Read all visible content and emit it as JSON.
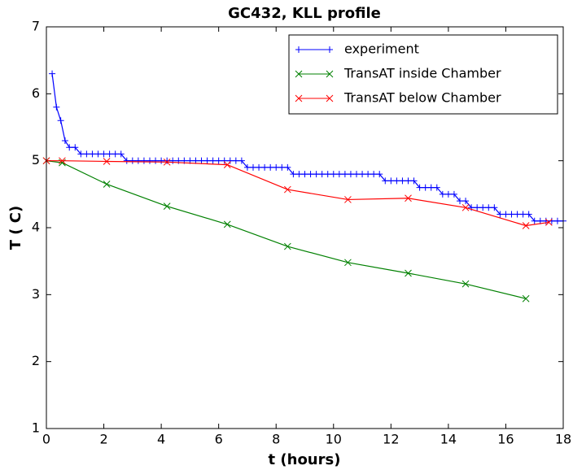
{
  "chart_data": {
    "type": "line",
    "title": "GC432, KLL profile",
    "x_label": "t (hours)",
    "y_label": "T ( C)",
    "xlim": [
      0,
      18
    ],
    "ylim": [
      1,
      7
    ],
    "xticks": [
      0,
      2,
      4,
      6,
      8,
      10,
      12,
      14,
      16,
      18
    ],
    "yticks": [
      1,
      2,
      3,
      4,
      5,
      6,
      7
    ],
    "legend": "upper right",
    "series": [
      {
        "name": "experiment",
        "color": "#0000ff",
        "marker": "+",
        "x": [
          0.2,
          0.35,
          0.5,
          0.65,
          0.8,
          1.0,
          1.2,
          1.4,
          1.6,
          1.8,
          2.0,
          2.2,
          2.4,
          2.6,
          2.8,
          3.0,
          3.2,
          3.4,
          3.6,
          3.8,
          4.0,
          4.2,
          4.4,
          4.6,
          4.8,
          5.0,
          5.2,
          5.4,
          5.6,
          5.8,
          6.0,
          6.2,
          6.4,
          6.6,
          6.8,
          7.0,
          7.2,
          7.4,
          7.6,
          7.8,
          8.0,
          8.2,
          8.4,
          8.6,
          8.8,
          9.0,
          9.2,
          9.4,
          9.6,
          9.8,
          10.0,
          10.2,
          10.4,
          10.6,
          10.8,
          11.0,
          11.2,
          11.4,
          11.6,
          11.8,
          12.0,
          12.2,
          12.4,
          12.6,
          12.8,
          13.0,
          13.2,
          13.4,
          13.6,
          13.8,
          14.0,
          14.2,
          14.4,
          14.6,
          14.8,
          15.0,
          15.2,
          15.4,
          15.6,
          15.8,
          16.0,
          16.2,
          16.4,
          16.6,
          16.8,
          17.0,
          17.2,
          17.4,
          17.6,
          17.8,
          18.0
        ],
        "values": [
          6.3,
          5.8,
          5.6,
          5.3,
          5.2,
          5.2,
          5.1,
          5.1,
          5.1,
          5.1,
          5.1,
          5.1,
          5.1,
          5.1,
          5.0,
          5.0,
          5.0,
          5.0,
          5.0,
          5.0,
          5.0,
          5.0,
          5.0,
          5.0,
          5.0,
          5.0,
          5.0,
          5.0,
          5.0,
          5.0,
          5.0,
          5.0,
          5.0,
          5.0,
          5.0,
          4.9,
          4.9,
          4.9,
          4.9,
          4.9,
          4.9,
          4.9,
          4.9,
          4.8,
          4.8,
          4.8,
          4.8,
          4.8,
          4.8,
          4.8,
          4.8,
          4.8,
          4.8,
          4.8,
          4.8,
          4.8,
          4.8,
          4.8,
          4.8,
          4.7,
          4.7,
          4.7,
          4.7,
          4.7,
          4.7,
          4.6,
          4.6,
          4.6,
          4.6,
          4.5,
          4.5,
          4.5,
          4.4,
          4.4,
          4.3,
          4.3,
          4.3,
          4.3,
          4.3,
          4.2,
          4.2,
          4.2,
          4.2,
          4.2,
          4.2,
          4.1,
          4.1,
          4.1,
          4.1,
          4.1,
          4.1
        ]
      },
      {
        "name": "TransAT inside Chamber",
        "color": "#008000",
        "marker": "x",
        "x": [
          0,
          0.55,
          2.1,
          4.2,
          6.3,
          8.4,
          10.5,
          12.6,
          14.6,
          16.7
        ],
        "values": [
          5.0,
          4.97,
          4.65,
          4.32,
          4.05,
          3.72,
          3.48,
          3.32,
          3.16,
          2.94
        ]
      },
      {
        "name": "TransAT below Chamber",
        "color": "#ff0000",
        "marker": "x",
        "x": [
          0,
          0.55,
          2.1,
          4.2,
          6.3,
          8.4,
          10.5,
          12.6,
          14.6,
          16.7,
          17.5
        ],
        "values": [
          5.0,
          5.0,
          4.99,
          4.98,
          4.94,
          4.57,
          4.42,
          4.44,
          4.3,
          4.03,
          4.08
        ]
      }
    ]
  }
}
